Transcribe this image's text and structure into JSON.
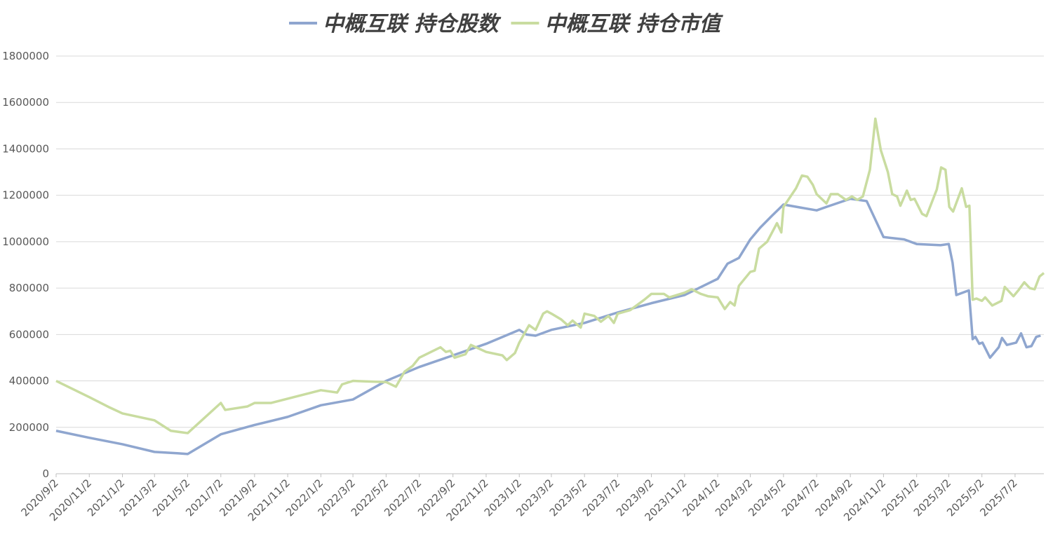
{
  "chart_data": {
    "type": "line",
    "xlim": [
      "2020/9/2",
      "2025/8/24"
    ],
    "xticks": [
      "2020/9/2",
      "2020/11/2",
      "2021/1/2",
      "2021/3/2",
      "2021/5/2",
      "2021/7/2",
      "2021/9/2",
      "2021/11/2",
      "2022/1/2",
      "2022/3/2",
      "2022/5/2",
      "2022/7/2",
      "2022/9/2",
      "2022/11/2",
      "2023/1/2",
      "2023/3/2",
      "2023/5/2",
      "2023/7/2",
      "2023/9/2",
      "2023/11/2",
      "2024/1/2",
      "2024/3/2",
      "2024/5/2",
      "2024/7/2",
      "2024/9/2",
      "2024/11/2",
      "2025/1/2",
      "2025/3/2",
      "2025/5/2",
      "2025/7/2"
    ],
    "ylim": [
      0,
      1800000
    ],
    "yticks": [
      0,
      200000,
      400000,
      600000,
      800000,
      1000000,
      1200000,
      1400000,
      1600000,
      1800000
    ],
    "grid": true,
    "legend": "top",
    "series": [
      {
        "name": "中概互联 持仓股数",
        "color": "#8fa6cf",
        "x": [
          "2020/9/2",
          "2020/11/2",
          "2021/1/2",
          "2021/3/2",
          "2021/4/15",
          "2021/5/2",
          "2021/7/2",
          "2021/9/2",
          "2021/11/2",
          "2022/1/2",
          "2022/3/2",
          "2022/5/2",
          "2022/7/2",
          "2022/9/2",
          "2022/11/2",
          "2023/1/2",
          "2023/1/15",
          "2023/2/1",
          "2023/3/2",
          "2023/5/2",
          "2023/7/2",
          "2023/9/2",
          "2023/11/2",
          "2024/1/2",
          "2024/1/20",
          "2024/2/10",
          "2024/3/2",
          "2024/3/20",
          "2024/4/10",
          "2024/5/2",
          "2024/7/2",
          "2024/7/20",
          "2024/9/2",
          "2024/10/2",
          "2024/11/2",
          "2024/12/10",
          "2025/1/2",
          "2025/2/15",
          "2025/3/2",
          "2025/3/9",
          "2025/3/16",
          "2025/4/8",
          "2025/4/15",
          "2025/4/20",
          "2025/4/27",
          "2025/5/3",
          "2025/5/17",
          "2025/6/2",
          "2025/6/8",
          "2025/6/17",
          "2025/7/4",
          "2025/7/13",
          "2025/7/23",
          "2025/8/1",
          "2025/8/10",
          "2025/8/18"
        ],
        "values": [
          185000,
          155000,
          127000,
          94000,
          88000,
          85000,
          170000,
          210000,
          245000,
          295000,
          320000,
          400000,
          460000,
          510000,
          560000,
          620000,
          600000,
          595000,
          620000,
          650000,
          695000,
          735000,
          770000,
          840000,
          905000,
          930000,
          1010000,
          1060000,
          1110000,
          1160000,
          1135000,
          1150000,
          1185000,
          1175000,
          1020000,
          1010000,
          990000,
          985000,
          990000,
          910000,
          770000,
          790000,
          580000,
          590000,
          560000,
          565000,
          500000,
          545000,
          585000,
          555000,
          565000,
          605000,
          545000,
          550000,
          590000,
          595000
        ]
      },
      {
        "name": "中概互联 持仓市值",
        "color": "#c9dca0",
        "x": [
          "2020/9/2",
          "2020/11/2",
          "2020/12/10",
          "2021/1/2",
          "2021/3/2",
          "2021/4/1",
          "2021/5/2",
          "2021/7/2",
          "2021/7/10",
          "2021/8/20",
          "2021/9/2",
          "2021/10/2",
          "2022/1/2",
          "2022/2/1",
          "2022/2/10",
          "2022/3/2",
          "2022/5/2",
          "2022/5/20",
          "2022/6/5",
          "2022/6/20",
          "2022/7/2",
          "2022/8/10",
          "2022/8/20",
          "2022/8/28",
          "2022/9/5",
          "2022/9/25",
          "2022/10/5",
          "2022/11/2",
          "2022/12/2",
          "2022/12/10",
          "2022/12/25",
          "2023/1/2",
          "2023/1/20",
          "2023/2/1",
          "2023/2/15",
          "2023/2/22",
          "2023/3/2",
          "2023/3/20",
          "2023/4/1",
          "2023/4/10",
          "2023/4/25",
          "2023/5/2",
          "2023/5/20",
          "2023/6/1",
          "2023/6/15",
          "2023/6/25",
          "2023/7/2",
          "2023/7/25",
          "2023/8/20",
          "2023/9/2",
          "2023/9/25",
          "2023/10/5",
          "2023/11/2",
          "2023/11/15",
          "2023/12/2",
          "2023/12/15",
          "2024/1/2",
          "2024/1/15",
          "2024/1/25",
          "2024/2/2",
          "2024/2/10",
          "2024/3/2",
          "2024/3/10",
          "2024/3/18",
          "2024/4/2",
          "2024/4/20",
          "2024/4/28",
          "2024/5/2",
          "2024/5/25",
          "2024/6/5",
          "2024/6/15",
          "2024/6/25",
          "2024/7/2",
          "2024/7/20",
          "2024/7/28",
          "2024/8/10",
          "2024/8/25",
          "2024/9/5",
          "2024/9/15",
          "2024/9/25",
          "2024/10/8",
          "2024/10/18",
          "2024/10/28",
          "2024/11/10",
          "2024/11/18",
          "2024/11/27",
          "2024/12/3",
          "2024/12/15",
          "2024/12/22",
          "2024/12/29",
          "2025/1/12",
          "2025/1/20",
          "2025/2/8",
          "2025/2/16",
          "2025/2/24",
          "2025/3/3",
          "2025/3/10",
          "2025/3/26",
          "2025/4/3",
          "2025/4/9",
          "2025/4/15",
          "2025/4/22",
          "2025/5/2",
          "2025/5/8",
          "2025/5/21",
          "2025/6/7",
          "2025/6/13",
          "2025/6/29",
          "2025/7/8",
          "2025/7/19",
          "2025/7/29",
          "2025/8/7",
          "2025/8/16",
          "2025/8/24"
        ],
        "values": [
          400000,
          330000,
          285000,
          260000,
          230000,
          185000,
          175000,
          305000,
          275000,
          290000,
          305000,
          305000,
          360000,
          350000,
          385000,
          400000,
          395000,
          375000,
          440000,
          465000,
          500000,
          545000,
          525000,
          530000,
          500000,
          515000,
          555000,
          525000,
          510000,
          490000,
          520000,
          565000,
          640000,
          620000,
          690000,
          700000,
          690000,
          665000,
          640000,
          660000,
          630000,
          690000,
          680000,
          655000,
          680000,
          650000,
          690000,
          705000,
          750000,
          775000,
          775000,
          760000,
          780000,
          795000,
          775000,
          765000,
          760000,
          710000,
          740000,
          725000,
          810000,
          870000,
          875000,
          970000,
          1000000,
          1080000,
          1040000,
          1150000,
          1230000,
          1285000,
          1280000,
          1245000,
          1205000,
          1165000,
          1205000,
          1205000,
          1180000,
          1195000,
          1180000,
          1195000,
          1310000,
          1530000,
          1395000,
          1300000,
          1205000,
          1195000,
          1155000,
          1220000,
          1180000,
          1185000,
          1120000,
          1110000,
          1225000,
          1320000,
          1310000,
          1150000,
          1130000,
          1230000,
          1150000,
          1155000,
          750000,
          755000,
          745000,
          760000,
          725000,
          745000,
          805000,
          765000,
          790000,
          825000,
          800000,
          795000,
          850000,
          865000
        ]
      }
    ]
  }
}
